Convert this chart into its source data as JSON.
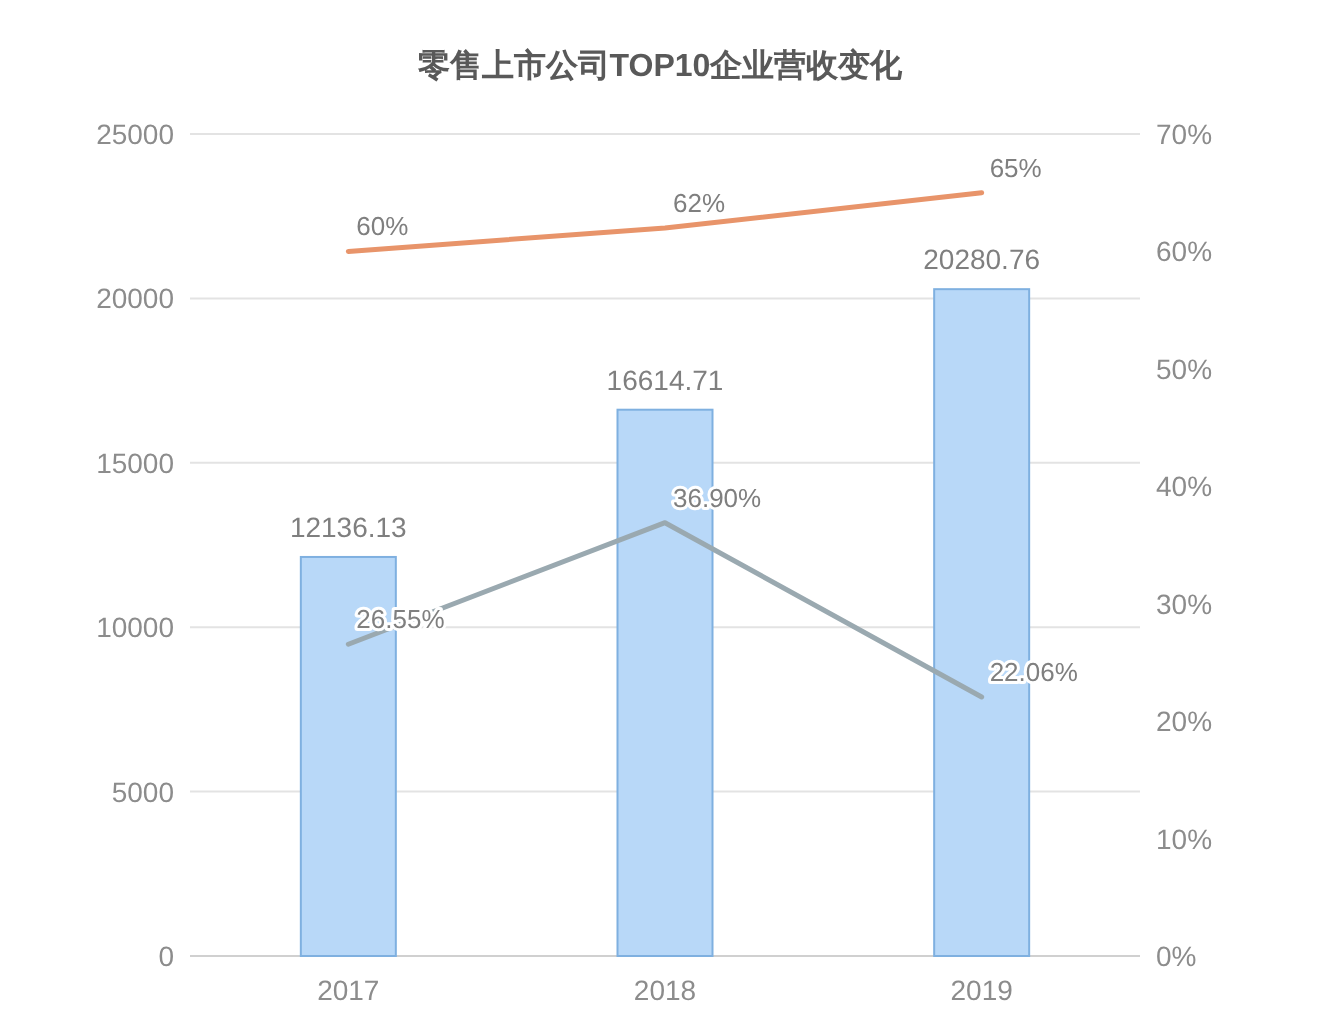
{
  "chart_data": {
    "type": "bar",
    "title": "零售上市公司TOP10企业营收变化",
    "categories": [
      "2017",
      "2018",
      "2019"
    ],
    "series": [
      {
        "color": "#b8d8f8",
        "values": [
          12136.13,
          16614.71,
          20280.76
        ]
      },
      {
        "type": "line",
        "axis": "y2",
        "color": "#e8946a",
        "values": [
          60,
          62,
          65
        ],
        "value_labels": [
          "60%",
          "62%",
          "65%"
        ]
      },
      {
        "type": "line",
        "axis": "y2",
        "color": "#9aa9b0",
        "values": [
          26.55,
          36.9,
          22.06
        ],
        "value_labels": [
          "26.55%",
          "36.90%",
          "22.06%"
        ]
      }
    ],
    "ylim": [
      0,
      25000
    ],
    "yticks": [
      0,
      5000,
      10000,
      15000,
      20000,
      25000
    ],
    "y2lim": [
      0,
      70
    ],
    "y2ticks": [
      {
        "value": 0,
        "label": "0%"
      },
      {
        "value": 10,
        "label": "10%"
      },
      {
        "value": 20,
        "label": "20%"
      },
      {
        "value": 30,
        "label": "30%"
      },
      {
        "value": 40,
        "label": "40%"
      },
      {
        "value": 50,
        "label": "50%"
      },
      {
        "value": 60,
        "label": "60%"
      },
      {
        "value": 70,
        "label": "70%"
      }
    ],
    "grid": "y",
    "data_labels": true
  }
}
